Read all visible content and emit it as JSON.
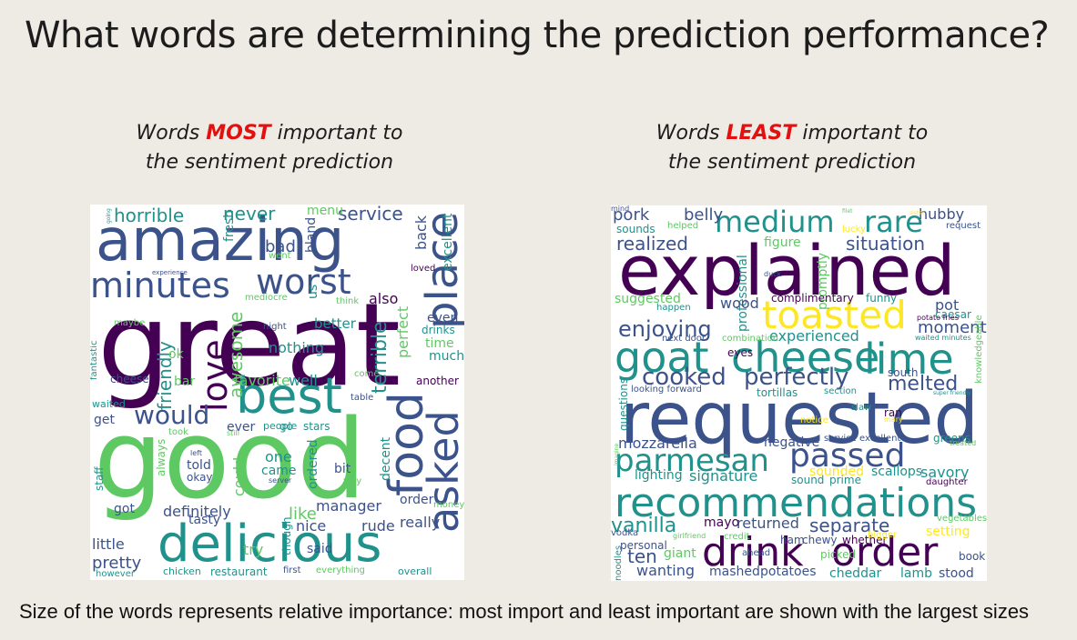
{
  "title": "What words are determining the prediction performance?",
  "left_heading": {
    "line1_pre": "Words ",
    "line1_emph": "MOST",
    "line1_post": " important to",
    "line2": "the sentiment prediction"
  },
  "right_heading": {
    "line1_pre": "Words ",
    "line1_emph": "LEAST",
    "line1_post": " important to",
    "line2": "the sentiment prediction"
  },
  "caption": "Size of the words represents relative importance: most import and least important are shown with the largest sizes",
  "colors": {
    "background": "#eeebe4",
    "emphasis": "#e3100f",
    "palette": [
      "#440154",
      "#3b528b",
      "#21918c",
      "#5ec962",
      "#fde725"
    ]
  },
  "left_cloud": {
    "words": [
      "great",
      "good",
      "amazing",
      "delicious",
      "best",
      "food",
      "minutes",
      "worst",
      "place",
      "asked",
      "love",
      "would",
      "horrible",
      "never",
      "service",
      "friendly",
      "terrible",
      "awesome",
      "bad",
      "nothing",
      "favorite",
      "well",
      "better",
      "also",
      "fresh",
      "bland",
      "back",
      "excellent",
      "perfect",
      "even",
      "drinks",
      "time",
      "much",
      "another",
      "menu",
      "went",
      "loved",
      "us",
      "think",
      "mediocre",
      "night",
      "ok",
      "maybe",
      "fantastic",
      "cheese",
      "bar",
      "table",
      "come",
      "get",
      "waited",
      "took",
      "ever",
      "people",
      "go",
      "stars",
      "still",
      "always",
      "told",
      "okay",
      "one",
      "came",
      "server",
      "could",
      "ordered",
      "bit",
      "decent",
      "way",
      "left",
      "staff",
      "got",
      "definitely",
      "like",
      "manager",
      "order",
      "money",
      "tasty",
      "nice",
      "rude",
      "really",
      "though",
      "try",
      "said",
      "little",
      "pretty",
      "however",
      "chicken",
      "restaurant",
      "first",
      "everything",
      "overall",
      "experience",
      "going"
    ]
  },
  "right_cloud": {
    "words": [
      "requested",
      "explained",
      "recommendations",
      "drink",
      "order",
      "goat",
      "cheese",
      "lime",
      "toasted",
      "medium",
      "rare",
      "passed",
      "parmesan",
      "cooked",
      "perfectly",
      "enjoying",
      "realized",
      "situation",
      "pork",
      "belly",
      "hubby",
      "request",
      "sounds",
      "helped",
      "figure",
      "lucky",
      "filet",
      "promptly",
      "professional",
      "duck",
      "suggested",
      "wood",
      "complimentary",
      "funny",
      "pot",
      "caesar",
      "happen",
      "moment",
      "experienced",
      "potato fries",
      "knowledgeable",
      "next door",
      "combination",
      "eyes",
      "waited minutes",
      "south",
      "melted",
      "looking forward",
      "tortillas",
      "section",
      "questions",
      "slaw",
      "ran",
      "mary",
      "notice",
      "mozzarella",
      "negative",
      "service excellent",
      "greens",
      "treated",
      "lighting",
      "signature",
      "sound",
      "prime",
      "sounded",
      "scallops",
      "savory",
      "daughter",
      "vanilla",
      "mayo",
      "returned",
      "separate",
      "vegetables",
      "setting",
      "vodka",
      "personal",
      "girlfriend",
      "credit",
      "ham",
      "chewy",
      "whether",
      "bigger",
      "ten",
      "giant",
      "ahead",
      "picked",
      "book",
      "noodles",
      "wanting",
      "mashed",
      "potatoes",
      "cheddar",
      "lamb",
      "stood",
      "imagine",
      "sister",
      "super friendly",
      "mind"
    ]
  }
}
